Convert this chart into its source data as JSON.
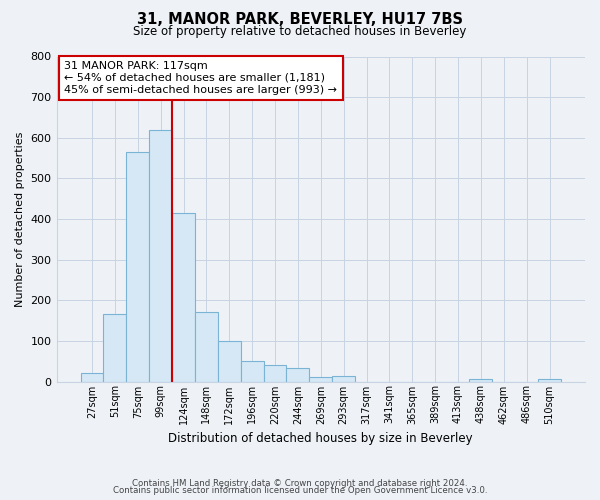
{
  "title": "31, MANOR PARK, BEVERLEY, HU17 7BS",
  "subtitle": "Size of property relative to detached houses in Beverley",
  "xlabel": "Distribution of detached houses by size in Beverley",
  "ylabel": "Number of detached properties",
  "bin_labels": [
    "27sqm",
    "51sqm",
    "75sqm",
    "99sqm",
    "124sqm",
    "148sqm",
    "172sqm",
    "196sqm",
    "220sqm",
    "244sqm",
    "269sqm",
    "293sqm",
    "317sqm",
    "341sqm",
    "365sqm",
    "389sqm",
    "413sqm",
    "438sqm",
    "462sqm",
    "486sqm",
    "510sqm"
  ],
  "bar_values": [
    20,
    165,
    565,
    620,
    415,
    170,
    100,
    50,
    40,
    33,
    12,
    13,
    0,
    0,
    0,
    0,
    0,
    5,
    0,
    0,
    7
  ],
  "bar_facecolor": "#d6e8f5",
  "bar_edge_color": "#7ab3d4",
  "vline_color": "#cc0000",
  "annotation_text": "31 MANOR PARK: 117sqm\n← 54% of detached houses are smaller (1,181)\n45% of semi-detached houses are larger (993) →",
  "annotation_box_edgecolor": "#cc0000",
  "ylim": [
    0,
    800
  ],
  "yticks": [
    0,
    100,
    200,
    300,
    400,
    500,
    600,
    700,
    800
  ],
  "footer1": "Contains HM Land Registry data © Crown copyright and database right 2024.",
  "footer2": "Contains public sector information licensed under the Open Government Licence v3.0.",
  "bg_color": "#eef2f7",
  "plot_bg_color": "#eef2f7",
  "grid_color": "#c8d4e3"
}
